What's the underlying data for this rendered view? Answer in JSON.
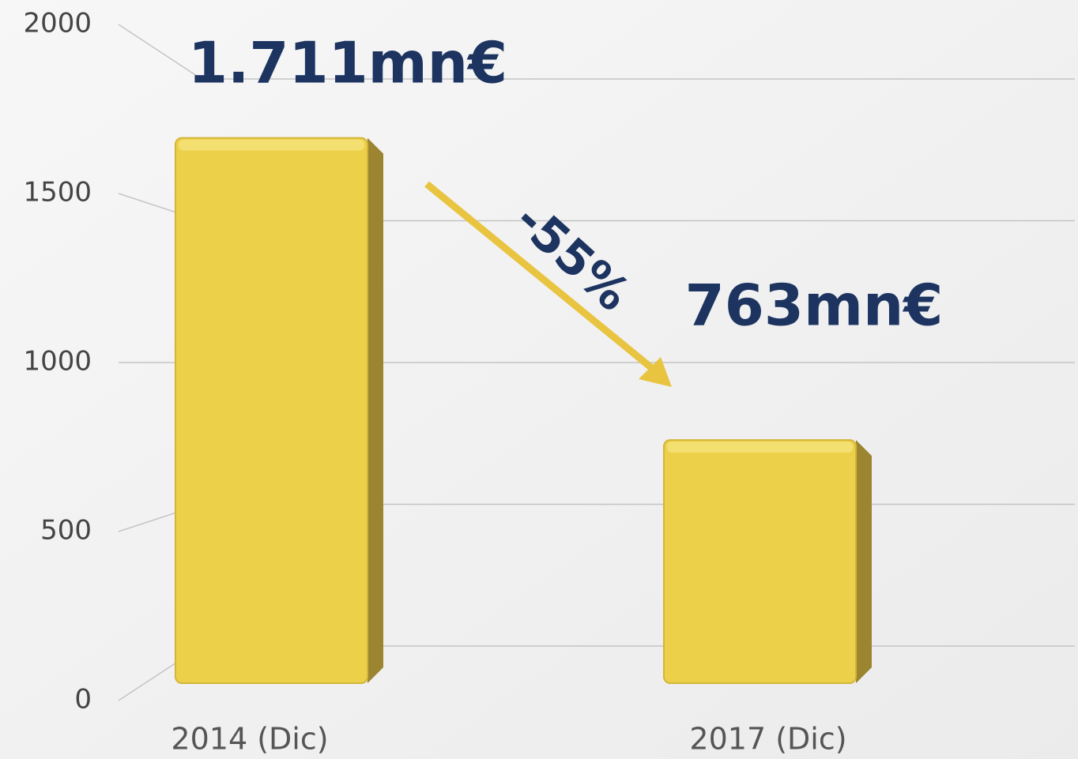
{
  "chart_data": {
    "type": "bar",
    "categories": [
      "2014 (Dic)",
      "2017 (Dic)"
    ],
    "values": [
      1711,
      763
    ],
    "value_labels": [
      "1.711mn€",
      "763mn€"
    ],
    "color": "#ecd04a",
    "ylim": [
      0,
      2000
    ],
    "yticks": [
      0,
      500,
      1000,
      1500,
      2000
    ],
    "grid": true,
    "annotation": "-55%"
  }
}
